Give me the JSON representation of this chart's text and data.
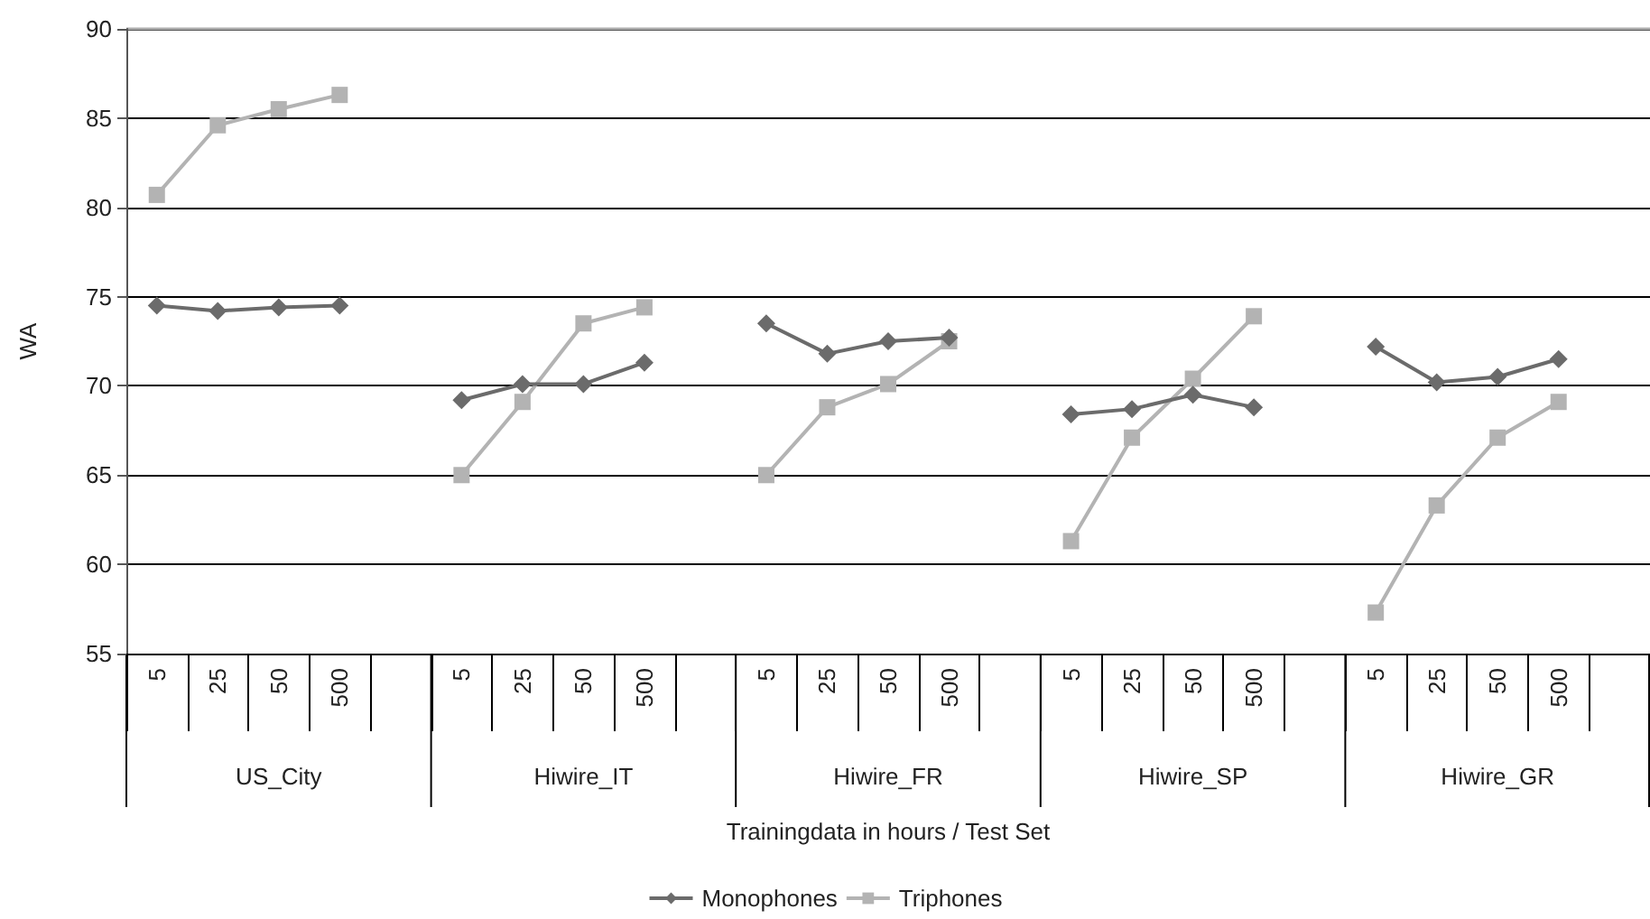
{
  "chart_data": {
    "type": "line",
    "ylabel": "WA",
    "xlabel": "Trainingdata in hours / Test Set",
    "categories": [
      "5",
      "25",
      "50",
      "500",
      null,
      "5",
      "25",
      "50",
      "500",
      null,
      "5",
      "25",
      "50",
      "500",
      null,
      "5",
      "25",
      "50",
      "500",
      null,
      "5",
      "25",
      "50",
      "500",
      null
    ],
    "annotations": [
      "US_City",
      "Hiwire_IT",
      "Hiwire_FR",
      "Hiwire_SP",
      "Hiwire_GR"
    ],
    "series": [
      {
        "name": "Monophones",
        "color": "#6b6b6b",
        "marker": "diamond",
        "values": [
          74.5,
          74.2,
          74.4,
          74.5,
          null,
          69.2,
          70.1,
          70.1,
          71.3,
          null,
          73.5,
          71.8,
          72.5,
          72.7,
          null,
          68.4,
          68.7,
          69.5,
          68.8,
          null,
          72.2,
          70.2,
          70.5,
          71.5,
          null
        ]
      },
      {
        "name": "Triphones",
        "color": "#b3b3b3",
        "marker": "square",
        "values": [
          80.7,
          84.6,
          85.5,
          86.3,
          null,
          65.0,
          69.1,
          73.5,
          74.4,
          null,
          65.0,
          68.8,
          70.1,
          72.5,
          null,
          61.3,
          67.1,
          70.4,
          73.9,
          null,
          57.3,
          63.3,
          67.1,
          69.1,
          null
        ]
      }
    ],
    "ylim": [
      55,
      90
    ],
    "yticks": [
      55,
      60,
      65,
      70,
      75,
      80,
      85,
      90
    ],
    "grid": "y",
    "legend": "bottom"
  }
}
